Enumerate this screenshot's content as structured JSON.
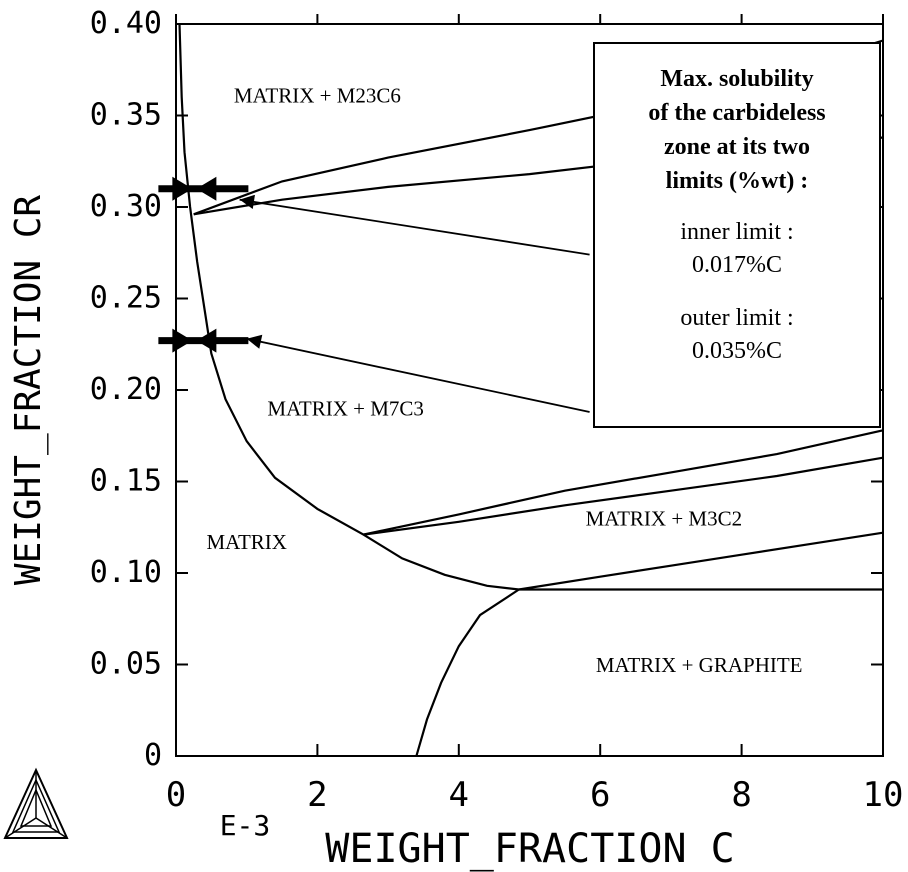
{
  "chart_data": {
    "type": "line",
    "xlabel": "WEIGHT_FRACTION C",
    "ylabel": "WEIGHT_FRACTION CR",
    "x_multiplier_label": "E-3",
    "xlim": [
      0,
      10
    ],
    "ylim": [
      0,
      0.4
    ],
    "x_ticks": [
      "0",
      "2",
      "4",
      "6",
      "8",
      "10"
    ],
    "y_ticks": [
      "0",
      "0.05",
      "0.10",
      "0.15",
      "0.20",
      "0.25",
      "0.30",
      "0.35",
      "0.40"
    ],
    "grid": false,
    "series": [
      {
        "id": "matrix-boundary",
        "points": [
          [
            0.05,
            0.4
          ],
          [
            0.08,
            0.36
          ],
          [
            0.12,
            0.33
          ],
          [
            0.2,
            0.3
          ],
          [
            0.3,
            0.27
          ],
          [
            0.42,
            0.24
          ],
          [
            0.5,
            0.22
          ],
          [
            0.7,
            0.195
          ],
          [
            1.0,
            0.172
          ],
          [
            1.4,
            0.152
          ],
          [
            2.0,
            0.135
          ],
          [
            2.65,
            0.121
          ],
          [
            3.2,
            0.108
          ],
          [
            3.8,
            0.099
          ],
          [
            4.4,
            0.093
          ],
          [
            4.85,
            0.091
          ]
        ]
      },
      {
        "id": "m23c6-upper",
        "points": [
          [
            0.25,
            0.296
          ],
          [
            1.5,
            0.314
          ],
          [
            3,
            0.327
          ],
          [
            5,
            0.342
          ],
          [
            7,
            0.358
          ],
          [
            8.5,
            0.373
          ],
          [
            10,
            0.391
          ]
        ]
      },
      {
        "id": "m23c6-lower",
        "points": [
          [
            0.25,
            0.296
          ],
          [
            1.5,
            0.304
          ],
          [
            3,
            0.311
          ],
          [
            5,
            0.318
          ],
          [
            7,
            0.327
          ],
          [
            8.5,
            0.332
          ],
          [
            10,
            0.338
          ]
        ]
      },
      {
        "id": "m7c3-upper",
        "points": [
          [
            2.65,
            0.121
          ],
          [
            4,
            0.132
          ],
          [
            5.5,
            0.145
          ],
          [
            7,
            0.155
          ],
          [
            8.5,
            0.165
          ],
          [
            10,
            0.178
          ]
        ]
      },
      {
        "id": "m7c3-lower",
        "points": [
          [
            2.65,
            0.121
          ],
          [
            4,
            0.128
          ],
          [
            5.5,
            0.137
          ],
          [
            7,
            0.145
          ],
          [
            8.5,
            0.153
          ],
          [
            10,
            0.163
          ]
        ]
      },
      {
        "id": "m3c2-lower",
        "points": [
          [
            4.85,
            0.091
          ],
          [
            6,
            0.098
          ],
          [
            7,
            0.104
          ],
          [
            8,
            0.11
          ],
          [
            9,
            0.116
          ],
          [
            10,
            0.122
          ]
        ]
      },
      {
        "id": "graphite-top",
        "points": [
          [
            4.85,
            0.091
          ],
          [
            10,
            0.091
          ]
        ]
      },
      {
        "id": "graphite-left",
        "points": [
          [
            3.4,
            0
          ],
          [
            3.55,
            0.02
          ],
          [
            3.75,
            0.04
          ],
          [
            4.0,
            0.06
          ],
          [
            4.3,
            0.077
          ],
          [
            4.85,
            0.091
          ]
        ]
      }
    ],
    "region_labels": [
      {
        "text": "MATRIX + M23C6",
        "x": 2.0,
        "y": 0.357
      },
      {
        "text": "MATRIX + M7C3",
        "x": 2.4,
        "y": 0.186
      },
      {
        "text": "MATRIX",
        "x": 1.0,
        "y": 0.113
      },
      {
        "text": "MATRIX + M3C2",
        "x": 6.9,
        "y": 0.126
      },
      {
        "text": "MATRIX + GRAPHITE",
        "x": 7.4,
        "y": 0.046
      }
    ],
    "markers": [
      {
        "type": "double-arrow",
        "x": 0.26,
        "y": 0.31
      },
      {
        "type": "double-arrow",
        "x": 0.26,
        "y": 0.227
      }
    ],
    "annotation_arrows": [
      {
        "from": [
          5.85,
          0.274
        ],
        "to": [
          0.9,
          0.304
        ]
      },
      {
        "from": [
          5.85,
          0.188
        ],
        "to": [
          1.0,
          0.228
        ]
      }
    ],
    "annotation": {
      "title_lines": [
        "Max. solubility",
        "of the carbideless",
        "zone at its two",
        "limits (%wt) :"
      ],
      "inner_label": "inner limit :",
      "inner_value": "0.017%C",
      "outer_label": "outer limit :",
      "outer_value": "0.035%C"
    }
  }
}
